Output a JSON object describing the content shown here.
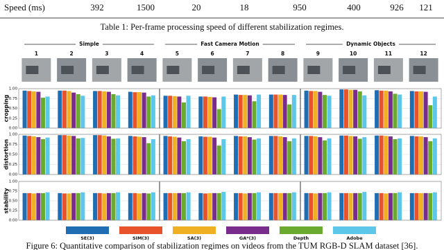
{
  "table": {
    "row_header": "Speed (ms)",
    "cells": [
      392,
      1500,
      20,
      18,
      950,
      400,
      926,
      121
    ]
  },
  "table_caption": "Table 1: Per-frame processing speed of different stabilization regimes.",
  "chart_data": {
    "type": "bar",
    "group_labels": [
      "Simple",
      "Fast Camera Motion",
      "Dynamic Objects"
    ],
    "categories": [
      "1",
      "2",
      "3",
      "4",
      "5",
      "6",
      "7",
      "8",
      "9",
      "10",
      "11",
      "12"
    ],
    "legend": [
      {
        "name": "SE(3)",
        "color": "#1f6db3"
      },
      {
        "name": "SIM(3)",
        "color": "#e8532b"
      },
      {
        "name": "SA(3)",
        "color": "#f0b023"
      },
      {
        "name": "GA*(3)",
        "color": "#7a2c8d"
      },
      {
        "name": "Depth",
        "color": "#69aa2f"
      },
      {
        "name": "Adobe",
        "color": "#5cc7e9"
      }
    ],
    "panels": [
      {
        "ylabel": "cropping",
        "ylim": [
          0,
          1
        ],
        "yticks": [
          {
            "value": 0,
            "label": "0.00"
          },
          {
            "value": 0.25,
            "label": "0.25"
          },
          {
            "value": 0.5,
            "label": "0.50"
          },
          {
            "value": 0.75,
            "label": "0.75"
          },
          {
            "value": 1,
            "label": "1.00"
          }
        ],
        "values": [
          [
            0.95,
            0.94,
            0.93,
            0.92,
            0.77,
            0.8
          ],
          [
            0.95,
            0.95,
            0.94,
            0.9,
            0.86,
            0.82
          ],
          [
            0.94,
            0.94,
            0.93,
            0.92,
            0.86,
            0.83
          ],
          [
            0.92,
            0.91,
            0.91,
            0.9,
            0.8,
            0.83
          ],
          [
            0.82,
            0.82,
            0.81,
            0.8,
            0.65,
            0.82
          ],
          [
            0.8,
            0.8,
            0.79,
            0.78,
            0.48,
            0.8
          ],
          [
            0.85,
            0.84,
            0.84,
            0.83,
            0.68,
            0.85
          ],
          [
            0.85,
            0.85,
            0.85,
            0.84,
            0.6,
            0.84
          ],
          [
            0.95,
            0.94,
            0.94,
            0.92,
            0.84,
            0.82
          ],
          [
            0.98,
            0.98,
            0.97,
            0.97,
            0.93,
            0.83
          ],
          [
            0.96,
            0.95,
            0.95,
            0.93,
            0.87,
            0.85
          ],
          [
            0.94,
            0.93,
            0.93,
            0.92,
            0.58,
            0.8
          ]
        ]
      },
      {
        "ylabel": "distortion",
        "ylim": [
          0,
          1
        ],
        "yticks": [
          {
            "value": 0,
            "label": "0.00"
          },
          {
            "value": 0.25,
            "label": "0.25"
          },
          {
            "value": 0.5,
            "label": "0.50"
          },
          {
            "value": 0.75,
            "label": "0.75"
          },
          {
            "value": 1,
            "label": "1.00"
          }
        ],
        "values": [
          [
            0.97,
            0.96,
            0.95,
            0.93,
            0.88,
            0.92
          ],
          [
            0.98,
            0.98,
            0.97,
            0.96,
            0.9,
            0.91
          ],
          [
            0.98,
            0.98,
            0.97,
            0.95,
            0.89,
            0.9
          ],
          [
            0.96,
            0.95,
            0.94,
            0.93,
            0.78,
            0.88
          ],
          [
            0.96,
            0.95,
            0.94,
            0.92,
            0.83,
            0.88
          ],
          [
            0.95,
            0.94,
            0.94,
            0.92,
            0.72,
            0.88
          ],
          [
            0.96,
            0.95,
            0.95,
            0.93,
            0.87,
            0.9
          ],
          [
            0.96,
            0.96,
            0.95,
            0.93,
            0.83,
            0.9
          ],
          [
            0.96,
            0.96,
            0.95,
            0.93,
            0.85,
            0.9
          ],
          [
            0.97,
            0.97,
            0.96,
            0.95,
            0.89,
            0.93
          ],
          [
            0.97,
            0.97,
            0.96,
            0.95,
            0.88,
            0.9
          ],
          [
            0.96,
            0.95,
            0.95,
            0.93,
            0.83,
            0.9
          ]
        ]
      },
      {
        "ylabel": "stability",
        "ylim": [
          0,
          1
        ],
        "yticks": [
          {
            "value": 0,
            "label": "0.00"
          },
          {
            "value": 0.25,
            "label": "0.25"
          },
          {
            "value": 0.5,
            "label": "0.50"
          },
          {
            "value": 0.75,
            "label": "0.75"
          },
          {
            "value": 1,
            "label": "1.00"
          }
        ],
        "values": [
          [
            0.7,
            0.7,
            0.69,
            0.7,
            0.7,
            0.72
          ],
          [
            0.7,
            0.69,
            0.69,
            0.7,
            0.7,
            0.72
          ],
          [
            0.7,
            0.7,
            0.69,
            0.7,
            0.7,
            0.72
          ],
          [
            0.7,
            0.7,
            0.69,
            0.7,
            0.69,
            0.72
          ],
          [
            0.7,
            0.7,
            0.7,
            0.7,
            0.7,
            0.72
          ],
          [
            0.7,
            0.69,
            0.7,
            0.7,
            0.7,
            0.73
          ],
          [
            0.7,
            0.7,
            0.69,
            0.7,
            0.7,
            0.72
          ],
          [
            0.7,
            0.7,
            0.7,
            0.7,
            0.7,
            0.72
          ],
          [
            0.7,
            0.7,
            0.69,
            0.7,
            0.7,
            0.72
          ],
          [
            0.7,
            0.7,
            0.7,
            0.7,
            0.7,
            0.73
          ],
          [
            0.7,
            0.7,
            0.69,
            0.7,
            0.7,
            0.72
          ],
          [
            0.7,
            0.7,
            0.7,
            0.7,
            0.7,
            0.72
          ]
        ]
      }
    ]
  },
  "figure_caption": "Figure 6: Quantitative comparison of stabilization regimes on videos from the TUM RGB-D SLAM dataset [36]."
}
